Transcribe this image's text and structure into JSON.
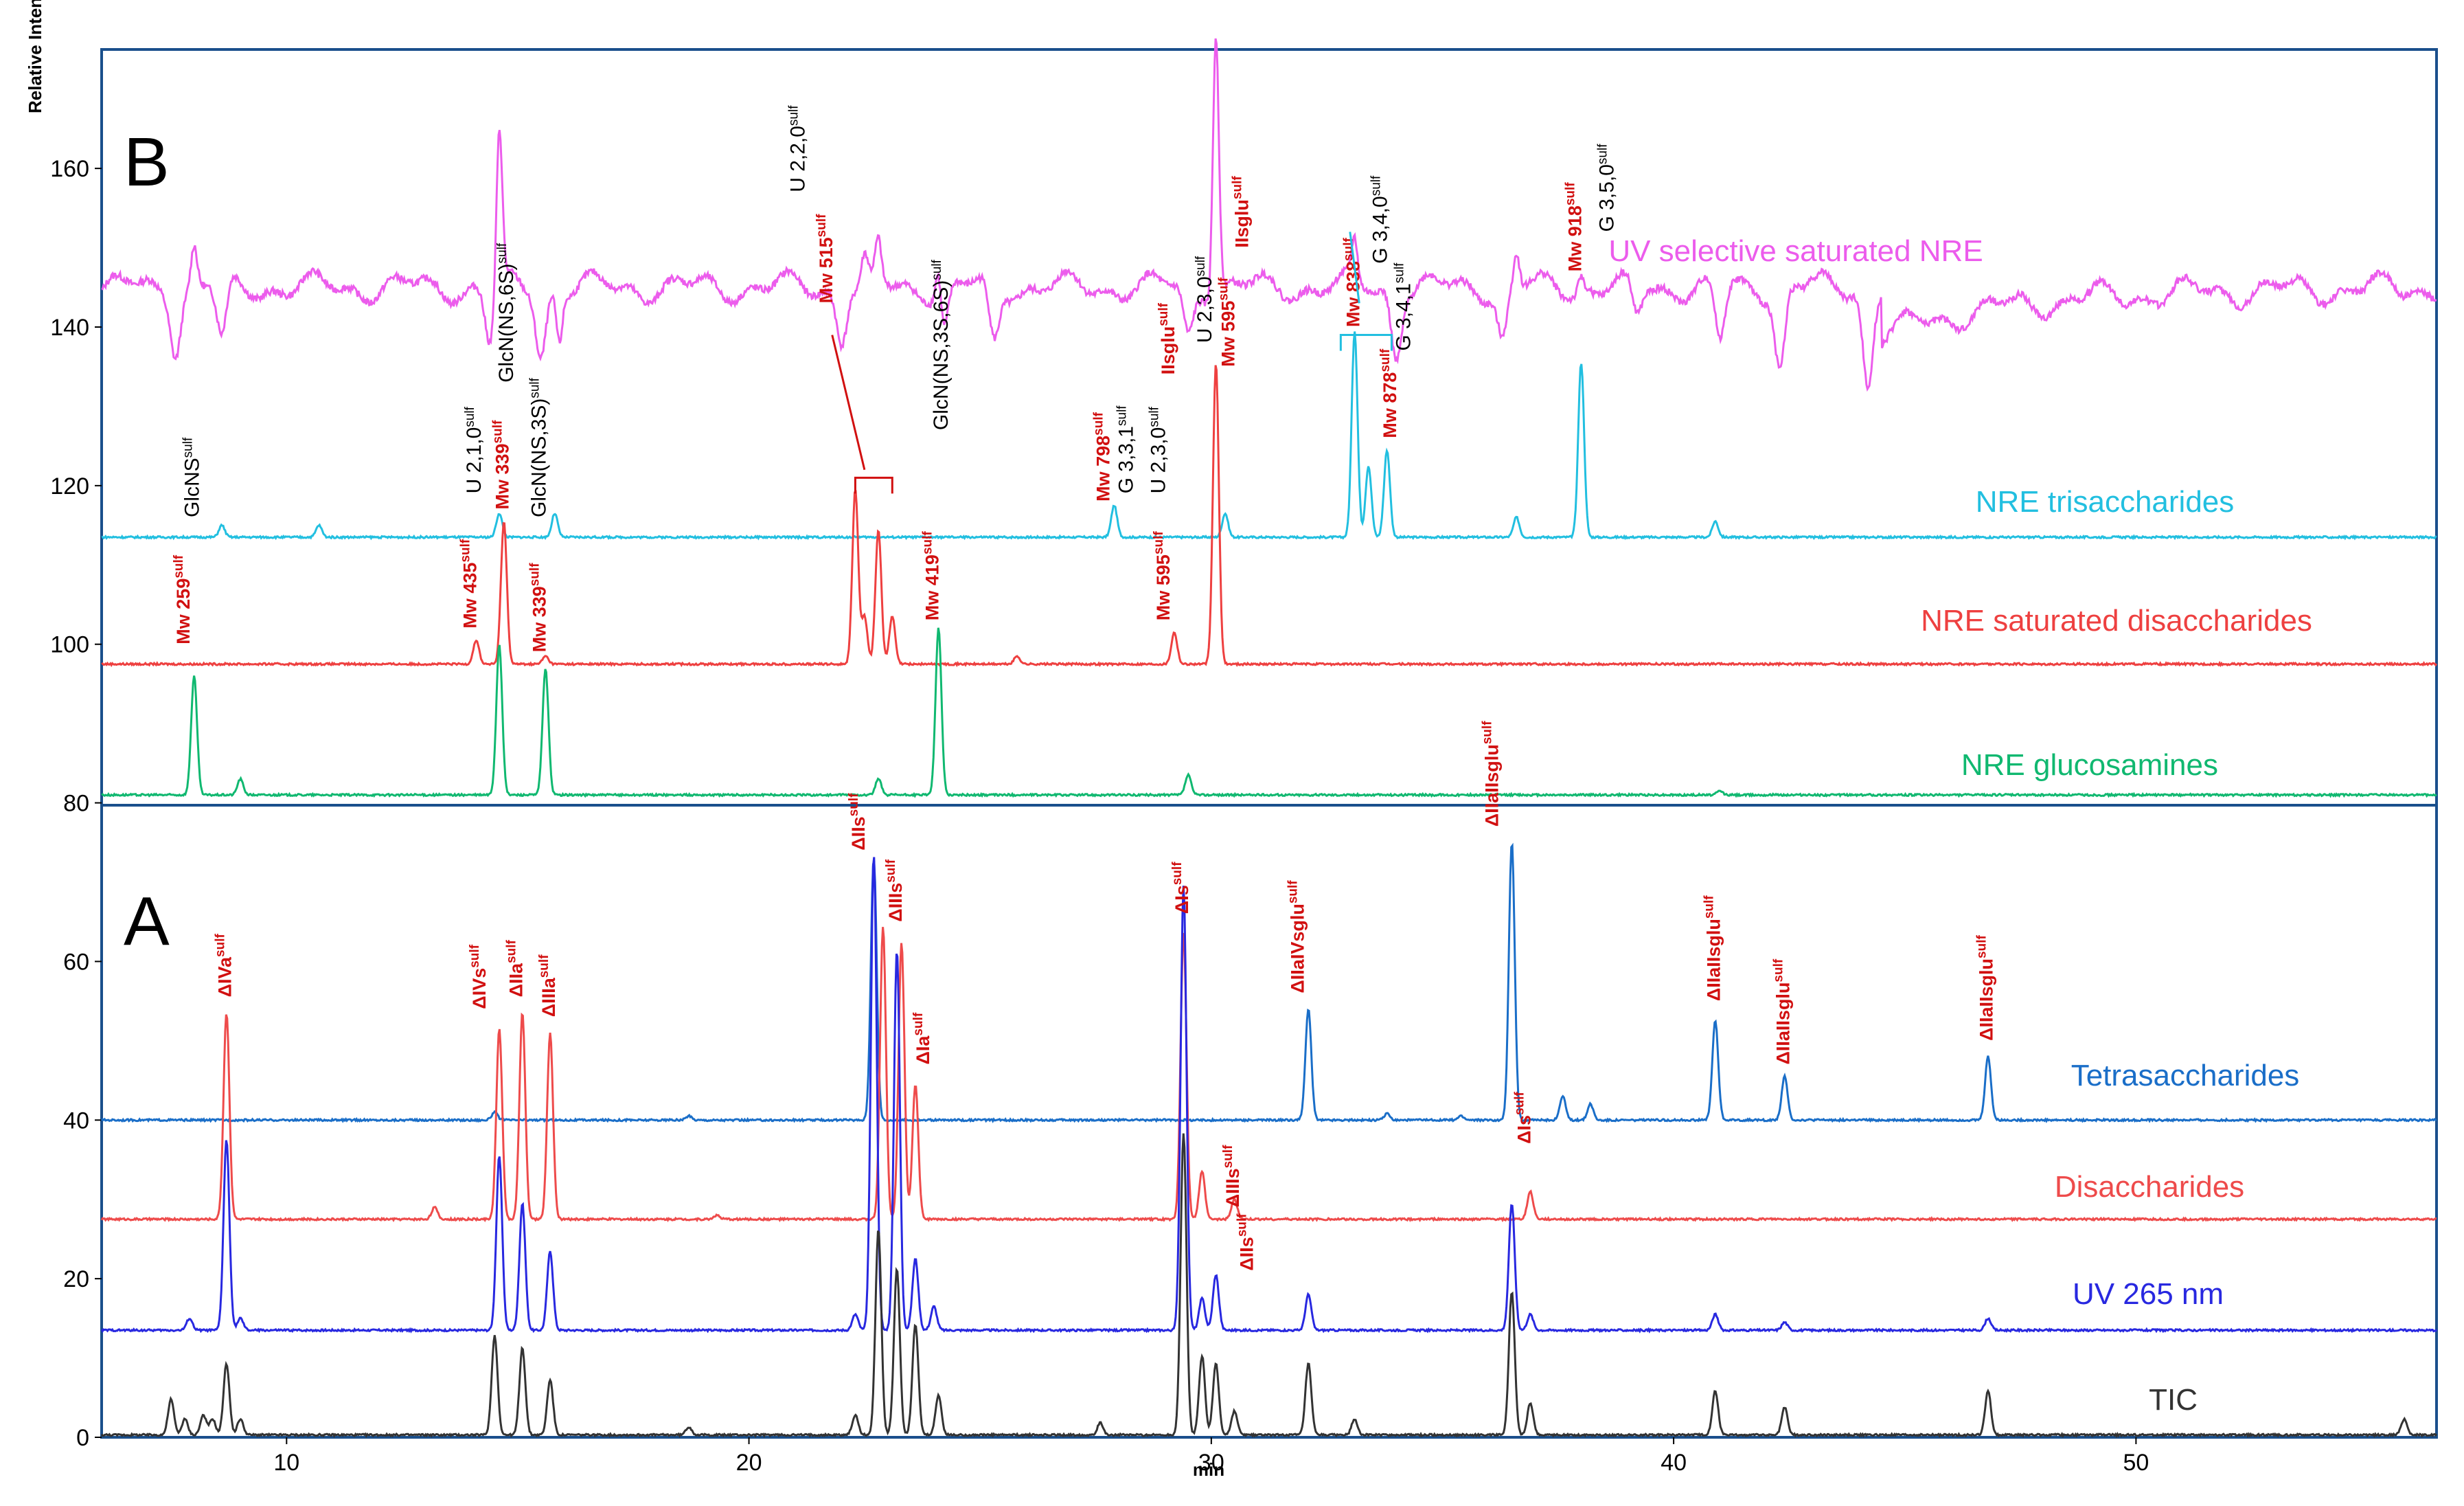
{
  "chart_data": {
    "type": "line",
    "xlabel": "min",
    "ylabel": "Relative Intensity",
    "xlim": [
      6,
      56.5
    ],
    "ylim": [
      0,
      175
    ],
    "xticks": [
      "10",
      "20",
      "30",
      "40",
      "50"
    ],
    "yticks": [
      "0",
      "20",
      "40",
      "60",
      "80",
      "100",
      "120",
      "140",
      "160"
    ],
    "panels": [
      {
        "letter": "A",
        "y_range": [
          0,
          80
        ]
      },
      {
        "letter": "B",
        "y_range": [
          80,
          175
        ]
      }
    ],
    "series": [
      {
        "name": "UV selective saturated NRE",
        "color": "#ec5cec",
        "baseline": 145,
        "peaks": [
          [
            8.0,
            5
          ],
          [
            14.6,
            20
          ],
          [
            15.9,
            -6
          ],
          [
            22.5,
            3
          ],
          [
            22.8,
            5
          ],
          [
            24.1,
            6
          ],
          [
            30.1,
            33
          ],
          [
            33.1,
            5
          ],
          [
            36.6,
            4
          ],
          [
            38.0,
            2
          ]
        ],
        "dips": [
          [
            7.6,
            -7
          ],
          [
            8.6,
            -7
          ],
          [
            14.4,
            -7
          ],
          [
            15.5,
            -8
          ],
          [
            22.0,
            -6
          ],
          [
            24.2,
            -6
          ],
          [
            25.3,
            -7
          ],
          [
            29.5,
            -6
          ],
          [
            34.0,
            -8
          ],
          [
            36.3,
            -6
          ],
          [
            39.2,
            -4
          ],
          [
            41.0,
            -7
          ],
          [
            42.3,
            -10
          ],
          [
            44.2,
            -12
          ]
        ]
      },
      {
        "name": "NRE trisaccharides",
        "color": "#22bfe0",
        "baseline": 113.5,
        "peaks": [
          [
            8.6,
            1.5
          ],
          [
            10.7,
            1.5
          ],
          [
            14.6,
            3
          ],
          [
            15.8,
            3
          ],
          [
            27.9,
            4
          ],
          [
            30.3,
            3
          ],
          [
            33.1,
            26
          ],
          [
            33.4,
            9
          ],
          [
            33.8,
            11
          ],
          [
            36.6,
            2.5
          ],
          [
            38.0,
            22
          ],
          [
            40.9,
            2
          ]
        ]
      },
      {
        "name": "NRE saturated disaccharides",
        "color": "#ee4040",
        "baseline": 97.5,
        "peaks": [
          [
            14.1,
            3
          ],
          [
            14.7,
            18
          ],
          [
            15.6,
            1
          ],
          [
            22.3,
            22
          ],
          [
            22.5,
            6
          ],
          [
            22.8,
            17
          ],
          [
            23.1,
            6
          ],
          [
            25.8,
            1
          ],
          [
            29.2,
            4
          ],
          [
            30.1,
            38
          ]
        ]
      },
      {
        "name": "NRE glucosamines",
        "color": "#10b870",
        "baseline": 81,
        "peaks": [
          [
            8.0,
            15
          ],
          [
            9.0,
            2
          ],
          [
            14.6,
            19
          ],
          [
            15.6,
            16
          ],
          [
            22.8,
            2
          ],
          [
            24.1,
            21
          ],
          [
            29.5,
            2.5
          ],
          [
            41.0,
            0.5
          ]
        ]
      },
      {
        "name": "Tetrasaccharides",
        "color": "#1a6ec8",
        "baseline": 40,
        "peaks": [
          [
            14.5,
            1
          ],
          [
            18.7,
            0.5
          ],
          [
            22.7,
            33
          ],
          [
            32.1,
            14
          ],
          [
            33.8,
            0.8
          ],
          [
            35.4,
            0.5
          ],
          [
            36.5,
            35
          ],
          [
            37.6,
            3
          ],
          [
            38.2,
            2
          ],
          [
            40.9,
            12.5
          ],
          [
            42.4,
            5.5
          ],
          [
            46.8,
            8
          ]
        ]
      },
      {
        "name": "Disaccharides",
        "color": "#ee4b4b",
        "baseline": 27.5,
        "peaks": [
          [
            8.7,
            26
          ],
          [
            13.2,
            1.5
          ],
          [
            14.6,
            24
          ],
          [
            15.1,
            26
          ],
          [
            15.7,
            23.5
          ],
          [
            19.3,
            0.5
          ],
          [
            22.9,
            37
          ],
          [
            23.3,
            35
          ],
          [
            23.6,
            17
          ],
          [
            29.4,
            36
          ],
          [
            29.8,
            6
          ],
          [
            30.5,
            2.5
          ],
          [
            36.9,
            3.5
          ]
        ]
      },
      {
        "name": "UV 265 nm",
        "color": "#2828e0",
        "baseline": 13.5,
        "peaks": [
          [
            7.9,
            1.5
          ],
          [
            8.7,
            24
          ],
          [
            9.0,
            1.5
          ],
          [
            14.6,
            22
          ],
          [
            15.1,
            16
          ],
          [
            15.7,
            10
          ],
          [
            22.3,
            2
          ],
          [
            22.7,
            60
          ],
          [
            23.2,
            48
          ],
          [
            23.6,
            9
          ],
          [
            24.0,
            3
          ],
          [
            29.4,
            56
          ],
          [
            29.8,
            4
          ],
          [
            30.1,
            7
          ],
          [
            32.1,
            4.5
          ],
          [
            36.5,
            16
          ],
          [
            36.9,
            2
          ],
          [
            40.9,
            2
          ],
          [
            42.4,
            1
          ],
          [
            46.8,
            1.5
          ]
        ]
      },
      {
        "name": "TIC",
        "color": "#333333",
        "baseline": 0.3,
        "peaks": [
          [
            7.5,
            4.5
          ],
          [
            7.8,
            2
          ],
          [
            8.2,
            2.5
          ],
          [
            8.4,
            2
          ],
          [
            8.7,
            9
          ],
          [
            9.0,
            2
          ],
          [
            14.5,
            12.5
          ],
          [
            15.1,
            11
          ],
          [
            15.7,
            7
          ],
          [
            18.7,
            1
          ],
          [
            22.3,
            2.5
          ],
          [
            22.8,
            26
          ],
          [
            23.2,
            21
          ],
          [
            23.6,
            14
          ],
          [
            24.1,
            5
          ],
          [
            27.6,
            1.5
          ],
          [
            29.4,
            38
          ],
          [
            29.8,
            10
          ],
          [
            30.1,
            9
          ],
          [
            30.5,
            3
          ],
          [
            32.1,
            9
          ],
          [
            33.1,
            2
          ],
          [
            36.5,
            18
          ],
          [
            36.9,
            4
          ],
          [
            40.9,
            5.5
          ],
          [
            42.4,
            3.5
          ],
          [
            46.8,
            5.5
          ],
          [
            55.8,
            2
          ]
        ]
      }
    ],
    "annotations_A": [
      {
        "x": 8.8,
        "y": 55.5,
        "text": "ΔIVa",
        "sup": "sulf"
      },
      {
        "x": 14.3,
        "y": 54,
        "text": "ΔIVs",
        "sup": "sulf"
      },
      {
        "x": 15.1,
        "y": 55.5,
        "text": "ΔIIa",
        "sup": "sulf"
      },
      {
        "x": 15.8,
        "y": 53,
        "text": "ΔIIIa",
        "sup": "sulf"
      },
      {
        "x": 22.5,
        "y": 74,
        "text": "ΔIIs",
        "sup": "sulf"
      },
      {
        "x": 23.3,
        "y": 65,
        "text": "ΔIIIs",
        "sup": "sulf"
      },
      {
        "x": 23.9,
        "y": 47,
        "text": "ΔIa",
        "sup": "sulf"
      },
      {
        "x": 29.5,
        "y": 66,
        "text": "ΔIs",
        "sup": "sulf"
      },
      {
        "x": 30.6,
        "y": 29,
        "text": "ΔIIIs",
        "sup": "sulf"
      },
      {
        "x": 30.9,
        "y": 21,
        "text": "ΔIIs",
        "sup": "sulf"
      },
      {
        "x": 32.0,
        "y": 56,
        "text": "ΔIIaIVsglu",
        "sup": "sulf"
      },
      {
        "x": 36.2,
        "y": 77,
        "text": "ΔIIaIIsglu",
        "sup": "sulf"
      },
      {
        "x": 36.9,
        "y": 37,
        "text": "ΔIs",
        "sup": "sulf"
      },
      {
        "x": 41.0,
        "y": 55,
        "text": "ΔIIaIIsglu",
        "sup": "sulf"
      },
      {
        "x": 42.5,
        "y": 47,
        "text": "ΔIIaIIsglu",
        "sup": "sulf"
      },
      {
        "x": 46.9,
        "y": 50,
        "text": "ΔIIaIIsglu",
        "sup": "sulf"
      }
    ],
    "annotations_B_red": [
      {
        "x": 7.9,
        "y": 100,
        "text": "Mw 259",
        "sup": "sulf"
      },
      {
        "x": 14.1,
        "y": 102,
        "text": "Mw 435",
        "sup": "sulf"
      },
      {
        "x": 14.8,
        "y": 117,
        "text": "Mw 339",
        "sup": "sulf"
      },
      {
        "x": 15.6,
        "y": 99,
        "text": "Mw 339",
        "sup": "sulf"
      },
      {
        "x": 21.8,
        "y": 143,
        "text": "Mw 515",
        "sup": "sulf"
      },
      {
        "x": 24.1,
        "y": 103,
        "text": "Mw 419",
        "sup": "sulf"
      },
      {
        "x": 27.8,
        "y": 118,
        "text": "Mw 798",
        "sup": "sulf"
      },
      {
        "x": 29.2,
        "y": 134,
        "text": "IIsglu",
        "sup": "sulf"
      },
      {
        "x": 29.1,
        "y": 103,
        "text": "Mw 595",
        "sup": "sulf"
      },
      {
        "x": 30.5,
        "y": 135,
        "text": "Mw 595",
        "sup": "sulf"
      },
      {
        "x": 30.8,
        "y": 150,
        "text": "IIsglu",
        "sup": "sulf"
      },
      {
        "x": 33.2,
        "y": 140,
        "text": "Mw 838",
        "sup": "sulf"
      },
      {
        "x": 34.0,
        "y": 126,
        "text": "Mw 878",
        "sup": "sulf"
      },
      {
        "x": 38.0,
        "y": 147,
        "text": "Mw 918",
        "sup": "sulf"
      }
    ],
    "annotations_B_black": [
      {
        "x": 8.1,
        "y": 116,
        "text": "GlcNS",
        "sup": "sulf"
      },
      {
        "x": 14.2,
        "y": 119,
        "text": "U 2,1,0",
        "sup": "sulf"
      },
      {
        "x": 14.9,
        "y": 133,
        "text": "GlcN(NS,6S)",
        "sup": "sulf"
      },
      {
        "x": 15.6,
        "y": 116,
        "text": "GlcN(NS,3S)",
        "sup": "sulf"
      },
      {
        "x": 21.2,
        "y": 157,
        "text": "U 2,2,0",
        "sup": "sulf"
      },
      {
        "x": 24.3,
        "y": 127,
        "text": "GlcN(NS,3S,6S)",
        "sup": "sulf"
      },
      {
        "x": 28.3,
        "y": 119,
        "text": "G 3,3,1",
        "sup": "sulf"
      },
      {
        "x": 29.0,
        "y": 119,
        "text": "U 2,3,0",
        "sup": "sulf"
      },
      {
        "x": 30.0,
        "y": 138,
        "text": "U 2,3,0",
        "sup": "sulf"
      },
      {
        "x": 33.8,
        "y": 148,
        "text": "G 3,4,0",
        "sup": "sulf"
      },
      {
        "x": 34.3,
        "y": 137,
        "text": "G 3,4,1",
        "sup": "sulf"
      },
      {
        "x": 38.7,
        "y": 152,
        "text": "G 3,5,0",
        "sup": "sulf"
      }
    ]
  }
}
